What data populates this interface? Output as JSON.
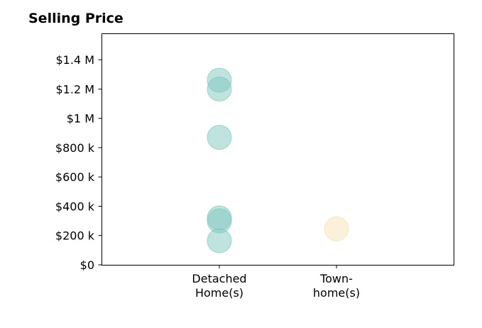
{
  "chart_data": {
    "type": "scatter",
    "title": "Selling Price",
    "xlabel": "",
    "ylabel": "",
    "categories": [
      [
        "Detached",
        "Home(s)"
      ],
      [
        "Town-",
        "home(s)"
      ]
    ],
    "ylim": [
      0,
      1580000
    ],
    "yticks": [
      {
        "value": 0,
        "label": "$0"
      },
      {
        "value": 200000,
        "label": "$200 k"
      },
      {
        "value": 400000,
        "label": "$400 k"
      },
      {
        "value": 600000,
        "label": "$600 k"
      },
      {
        "value": 800000,
        "label": "$800 k"
      },
      {
        "value": 1000000,
        "label": "$1 M"
      },
      {
        "value": 1200000,
        "label": "$1.2 M"
      },
      {
        "value": 1400000,
        "label": "$1.4 M"
      }
    ],
    "series": [
      {
        "category_index": 0,
        "color": "#7fc7be",
        "values": [
          1260000,
          1200000,
          870000,
          320000,
          300000,
          165000
        ]
      },
      {
        "category_index": 1,
        "color": "#f7e1b3",
        "values": [
          245000
        ]
      }
    ],
    "grid": false,
    "legend": "none"
  }
}
